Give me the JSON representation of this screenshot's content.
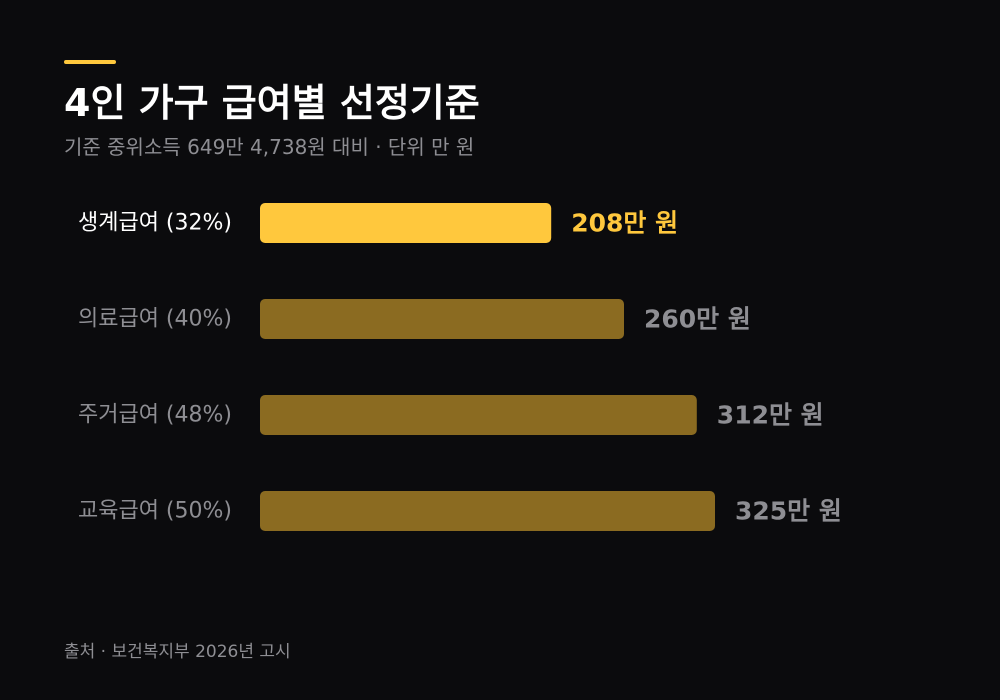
{
  "header": {
    "title": "4인 가구 급여별 선정기준",
    "subtitle": "기준 중위소득 649만 4,738원 대비 · 단위 만 원"
  },
  "chart_data": {
    "type": "bar",
    "orientation": "horizontal",
    "categories": [
      "생계급여 (32%)",
      "의료급여 (40%)",
      "주거급여 (48%)",
      "교육급여 (50%)"
    ],
    "values": [
      208,
      260,
      312,
      325
    ],
    "value_labels": [
      "208만 원",
      "260만 원",
      "312만 원",
      "325만 원"
    ],
    "highlight_index": 0,
    "xlim": [
      0,
      500
    ],
    "grid": false,
    "legend": "none"
  },
  "colors": {
    "highlight": "#ffc83d",
    "bar": "#8b6b21",
    "muted_text": "#8e8e93",
    "text": "#ffffff"
  },
  "footer": {
    "source": "출처 · 보건복지부 2026년 고시"
  }
}
